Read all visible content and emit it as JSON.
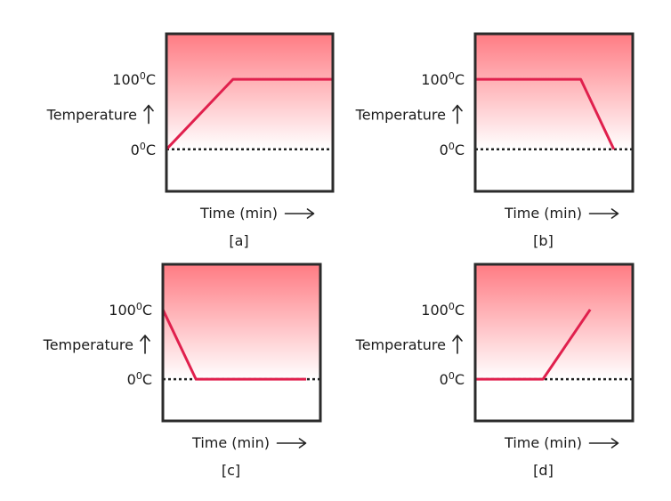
{
  "chart_data": [
    {
      "type": "line",
      "caption": "[a]",
      "xlabel": "Time (min)",
      "ylabel": "Temperature",
      "y_ticks": [
        {
          "value": 0,
          "base": "0",
          "sup": "0",
          "unit": "C"
        },
        {
          "value": 100,
          "base": "100",
          "sup": "0",
          "unit": "C"
        }
      ],
      "ylim": [
        -60,
        165
      ],
      "xlim": [
        0,
        10
      ],
      "baseline": 0,
      "colors": {
        "series": "#e0204d",
        "hot_zone": "#ff7b83"
      },
      "series": [
        {
          "x": [
            0,
            4,
            10
          ],
          "y": [
            0,
            100,
            100
          ]
        }
      ]
    },
    {
      "type": "line",
      "caption": "[b]",
      "xlabel": "Time (min)",
      "ylabel": "Temperature",
      "y_ticks": [
        {
          "value": 0,
          "base": "0",
          "sup": "0",
          "unit": "C"
        },
        {
          "value": 100,
          "base": "100",
          "sup": "0",
          "unit": "C"
        }
      ],
      "ylim": [
        -60,
        165
      ],
      "xlim": [
        0,
        10
      ],
      "baseline": 0,
      "colors": {
        "series": "#e0204d",
        "hot_zone": "#ff7b83"
      },
      "series": [
        {
          "x": [
            0,
            6.7,
            8.8
          ],
          "y": [
            100,
            100,
            0
          ]
        }
      ]
    },
    {
      "type": "line",
      "caption": "[c]",
      "xlabel": "Time (min)",
      "ylabel": "Temperature",
      "y_ticks": [
        {
          "value": 0,
          "base": "0",
          "sup": "0",
          "unit": "C"
        },
        {
          "value": 100,
          "base": "100",
          "sup": "0",
          "unit": "C"
        }
      ],
      "ylim": [
        -60,
        165
      ],
      "xlim": [
        0,
        10
      ],
      "baseline": 0,
      "colors": {
        "series": "#e0204d",
        "hot_zone": "#ff7b83"
      },
      "series": [
        {
          "x": [
            0,
            2.1,
            9.1
          ],
          "y": [
            100,
            0,
            0
          ]
        }
      ]
    },
    {
      "type": "line",
      "caption": "[d]",
      "xlabel": "Time (min)",
      "ylabel": "Temperature",
      "y_ticks": [
        {
          "value": 0,
          "base": "0",
          "sup": "0",
          "unit": "C"
        },
        {
          "value": 100,
          "base": "100",
          "sup": "0",
          "unit": "C"
        }
      ],
      "ylim": [
        -60,
        165
      ],
      "xlim": [
        0,
        10
      ],
      "baseline": 0,
      "colors": {
        "series": "#e0204d",
        "hot_zone": "#ff7b83"
      },
      "series": [
        {
          "x": [
            0,
            4.3,
            7.3
          ],
          "y": [
            0,
            0,
            100
          ]
        }
      ]
    }
  ]
}
